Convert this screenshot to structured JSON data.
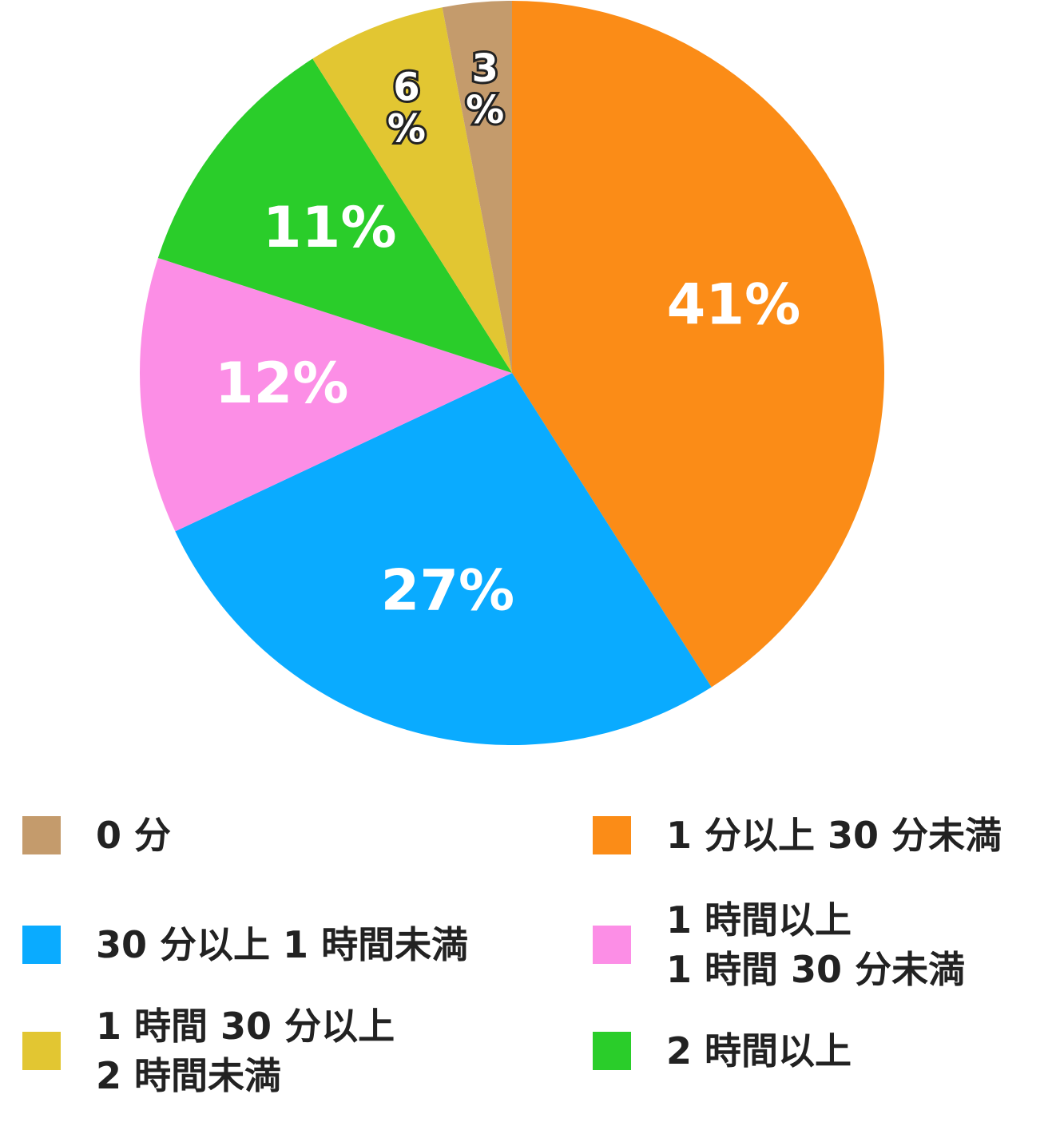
{
  "chart_data": {
    "type": "pie",
    "categories": [
      "1 分以上 30 分未満",
      "30 分以上 1 時間未満",
      "1 時間以上\n1 時間 30 分未満",
      "2 時間以上",
      "1 時間 30 分以上\n2 時間未満",
      "0 分"
    ],
    "values": [
      41,
      27,
      12,
      11,
      6,
      3
    ],
    "value_labels": [
      "41%",
      "27%",
      "12%",
      "11%",
      "6%",
      "3%"
    ],
    "colors": [
      "#fb8c17",
      "#0aabff",
      "#fc8ee6",
      "#2acd2a",
      "#e2c632",
      "#c49b6c"
    ]
  }
}
